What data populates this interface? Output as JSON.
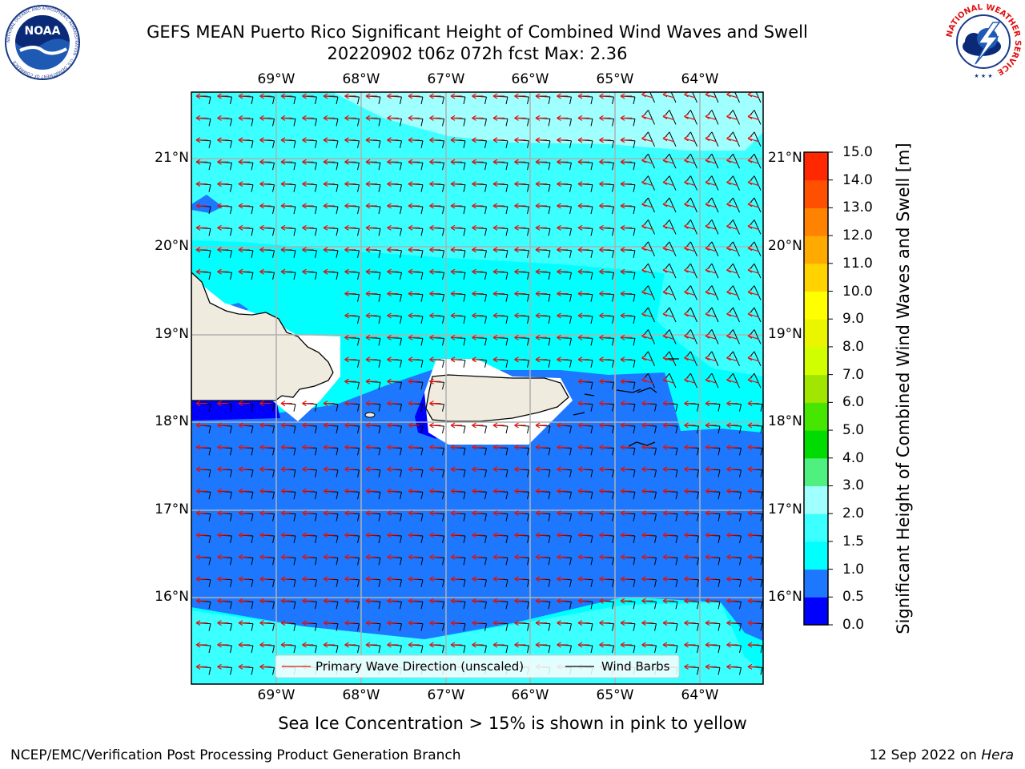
{
  "header": {
    "title_line1": "GEFS MEAN Puerto Rico Significant Height of Combined Wind Waves and Swell",
    "title_line2": "20220902 t06z 072h fcst   Max: 2.36"
  },
  "logos": {
    "noaa_text": "NOAA",
    "noaa_ring": "NATIONAL OCEANIC AND ATMOSPHERIC ADMINISTRATION · U.S. DEPARTMENT OF COMMERCE",
    "nws_ring": "NATIONAL WEATHER SERVICE"
  },
  "map": {
    "lon_labels": [
      "69°W",
      "68°W",
      "67°W",
      "66°W",
      "65°W",
      "64°W"
    ],
    "lat_labels": [
      "21°N",
      "20°N",
      "19°N",
      "18°N",
      "17°N",
      "16°N"
    ],
    "legend": {
      "wave_direction": "Primary Wave Direction (unscaled)",
      "wind_barbs": "Wind Barbs"
    },
    "colors": {
      "land": "#efebde",
      "wave_arrow": "#e0140e",
      "barb": "#000000",
      "grid": "#b0b0b0"
    }
  },
  "colorbar": {
    "label": "Significant Height of Combined Wind Waves and Swell [m]",
    "ticks": [
      "0.0",
      "0.5",
      "1.0",
      "1.5",
      "2.0",
      "3.0",
      "4.0",
      "5.0",
      "6.0",
      "7.0",
      "8.0",
      "9.0",
      "10.0",
      "11.0",
      "12.0",
      "13.0",
      "14.0",
      "15.0"
    ],
    "colors": [
      "#0000ff",
      "#1e78ff",
      "#00ffff",
      "#3cffff",
      "#a0ffff",
      "#50f080",
      "#00dc00",
      "#46e600",
      "#a0e600",
      "#d2ff00",
      "#ebf500",
      "#ffff00",
      "#ffd200",
      "#ffaa00",
      "#ff8200",
      "#ff5000",
      "#ff2800",
      "#ff0000"
    ]
  },
  "footer": {
    "ice_note": "Sea Ice Concentration > 15% is shown in pink to yellow",
    "branch": "NCEP/EMC/Verification Post Processing Product Generation Branch",
    "date": "12 Sep 2022 on",
    "host": "Hera"
  }
}
